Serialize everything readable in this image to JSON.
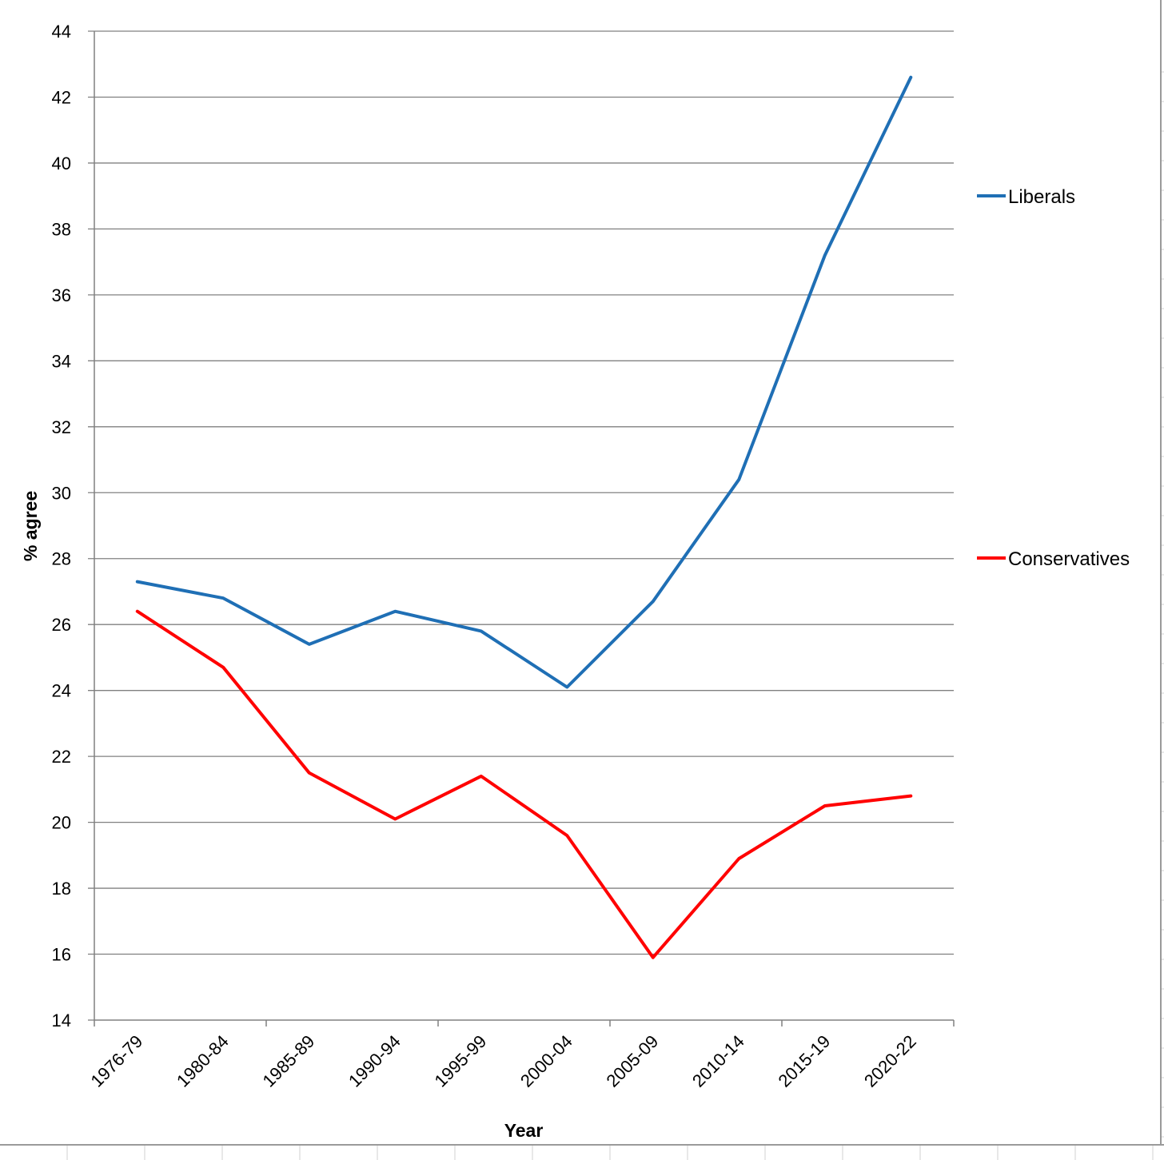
{
  "chart_data": {
    "type": "line",
    "xlabel": "Year",
    "ylabel": "% agree",
    "categories": [
      "1976-79",
      "1980-84",
      "1985-89",
      "1990-94",
      "1995-99",
      "2000-04",
      "2005-09",
      "2010-14",
      "2015-19",
      "2020-22"
    ],
    "ylim": [
      14,
      44
    ],
    "yticks": [
      14,
      16,
      18,
      20,
      22,
      24,
      26,
      28,
      30,
      32,
      34,
      36,
      38,
      40,
      42,
      44
    ],
    "grid": true,
    "legend_position": "right",
    "series": [
      {
        "name": "Liberals",
        "color": "#1f6fb5",
        "values": [
          27.3,
          26.8,
          25.4,
          26.4,
          25.8,
          24.1,
          26.7,
          30.4,
          37.2,
          42.6
        ]
      },
      {
        "name": "Conservatives",
        "color": "#ff0000",
        "values": [
          26.4,
          24.7,
          21.5,
          20.1,
          21.4,
          19.6,
          15.9,
          18.9,
          20.5,
          20.8
        ]
      }
    ]
  }
}
